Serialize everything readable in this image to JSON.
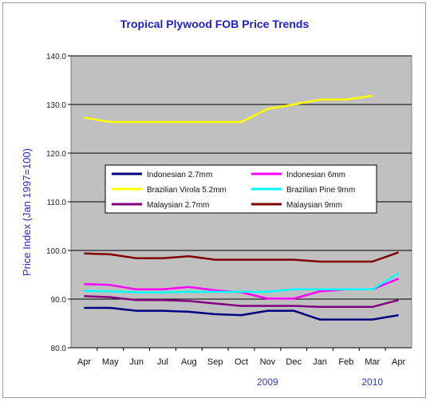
{
  "chart_data": {
    "type": "line",
    "title": "Tropical Plywood FOB Price Trends",
    "ylabel": "Price Index (Jan 1997=100)",
    "xlabel": "",
    "ylim": [
      80,
      140
    ],
    "yticks": [
      "80.0",
      "90.0",
      "100.0",
      "110.0",
      "120.0",
      "130.0",
      "140.0"
    ],
    "categories": [
      "Apr",
      "May",
      "Jun",
      "Jul",
      "Aug",
      "Sep",
      "Oct",
      "Nov",
      "Dec",
      "Jan",
      "Feb",
      "Mar",
      "Apr"
    ],
    "year_labels": [
      {
        "text": "2009",
        "category_index": 7
      },
      {
        "text": "2010",
        "category_index": 11
      }
    ],
    "grid": true,
    "legend_position": "center",
    "plot_background": "#c0c0c0",
    "series": [
      {
        "name": "Indonesian 2.7mm",
        "color": "#000080",
        "values": [
          88.2,
          88.2,
          87.6,
          87.6,
          87.4,
          86.9,
          86.7,
          87.6,
          87.6,
          85.8,
          85.8,
          85.8,
          86.7
        ]
      },
      {
        "name": "Indonesian 6mm",
        "color": "#ff00ff",
        "values": [
          93.1,
          92.9,
          92.0,
          92.0,
          92.5,
          91.8,
          91.4,
          90.1,
          90.1,
          91.6,
          92.0,
          92.0,
          94.2
        ]
      },
      {
        "name": "Brazilian Virola 5.2mm",
        "color": "#ffff00",
        "values": [
          127.3,
          126.4,
          126.4,
          126.4,
          126.4,
          126.4,
          126.4,
          129.1,
          130.0,
          131.0,
          131.0,
          131.8,
          null
        ]
      },
      {
        "name": "Brazilian Pine 9mm",
        "color": "#00ffff",
        "values": [
          91.7,
          91.6,
          91.4,
          91.4,
          91.5,
          91.5,
          91.5,
          91.5,
          92.0,
          92.0,
          92.0,
          92.0,
          95.3
        ]
      },
      {
        "name": "Malaysian 2.7mm",
        "color": "#800080",
        "values": [
          90.6,
          90.4,
          89.8,
          89.8,
          89.6,
          89.1,
          88.6,
          88.6,
          88.6,
          88.4,
          88.4,
          88.4,
          89.8
        ]
      },
      {
        "name": "Malaysian 9mm",
        "color": "#800000",
        "values": [
          99.4,
          99.2,
          98.4,
          98.4,
          98.8,
          98.1,
          98.1,
          98.1,
          98.1,
          97.7,
          97.7,
          97.7,
          99.6
        ]
      }
    ]
  }
}
